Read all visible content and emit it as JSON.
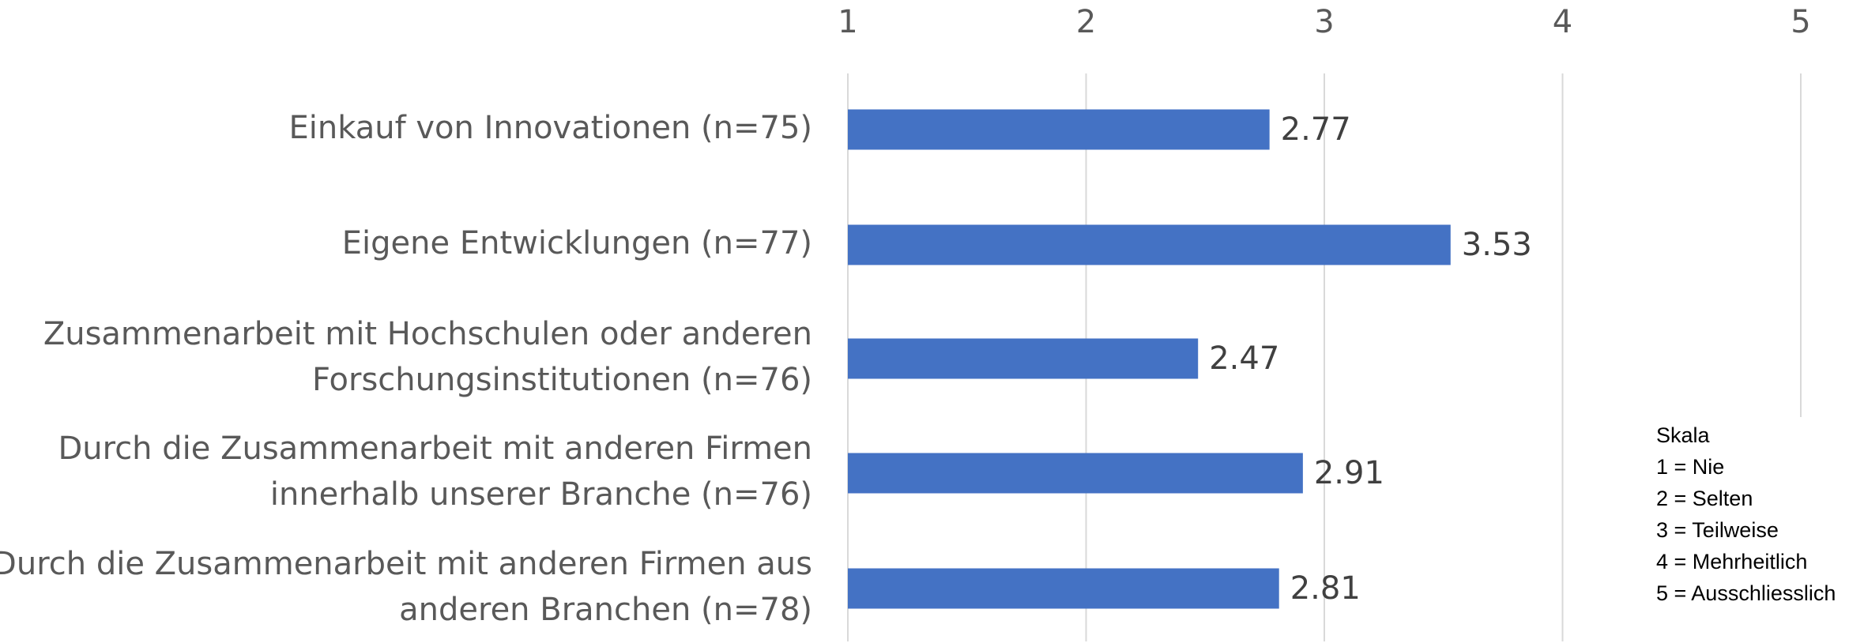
{
  "chart_data": {
    "type": "bar",
    "orientation": "horizontal",
    "categories": [
      [
        "Einkauf von Innovationen (n=75)"
      ],
      [
        "Eigene Entwicklungen (n=77)"
      ],
      [
        "Zusammenarbeit mit Hochschulen oder anderen",
        "Forschungsinstitutionen (n=76)"
      ],
      [
        "Durch die Zusammenarbeit mit anderen Firmen",
        "innerhalb unserer Branche (n=76)"
      ],
      [
        "Durch die Zusammenarbeit mit anderen Firmen aus",
        "anderen Branchen (n=78)"
      ]
    ],
    "values": [
      2.77,
      3.53,
      2.47,
      2.91,
      2.81
    ],
    "color": "#4472c4",
    "xlim": [
      1,
      5
    ],
    "xticks": [
      1,
      2,
      3,
      4,
      5
    ],
    "grid": true,
    "legend_note": {
      "title": "Skala",
      "lines": [
        "1 = Nie",
        "2 = Selten",
        "3 = Teilweise",
        "4 = Mehrheitlich",
        "5 = Ausschliesslich"
      ]
    }
  }
}
